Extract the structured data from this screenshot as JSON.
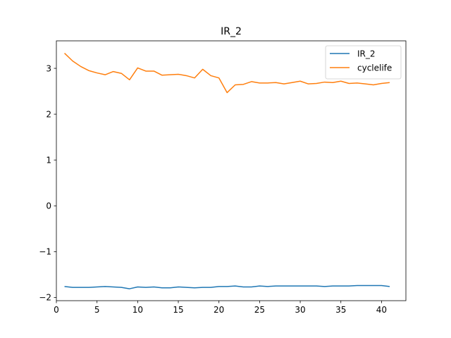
{
  "chart_data": {
    "type": "line",
    "title": "IR_2",
    "xlabel": "",
    "ylabel": "",
    "xlim": [
      -0.0,
      43.0
    ],
    "ylim": [
      -2.07,
      3.6
    ],
    "xticks": [
      0,
      5,
      10,
      15,
      20,
      25,
      30,
      35,
      40
    ],
    "yticks": [
      -2,
      -1,
      0,
      1,
      2,
      3
    ],
    "ytick_labels": [
      "−2",
      "−1",
      "0",
      "1",
      "2",
      "3"
    ],
    "grid": false,
    "legend_position": "top-right",
    "x": [
      1,
      2,
      3,
      4,
      5,
      6,
      7,
      8,
      9,
      10,
      11,
      12,
      13,
      14,
      15,
      16,
      17,
      18,
      19,
      20,
      21,
      22,
      23,
      24,
      25,
      26,
      27,
      28,
      29,
      30,
      31,
      32,
      33,
      34,
      35,
      36,
      37,
      38,
      39,
      40,
      41
    ],
    "series": [
      {
        "name": "IR_2",
        "color": "#1f77b4",
        "values": [
          -1.76,
          -1.78,
          -1.78,
          -1.78,
          -1.77,
          -1.76,
          -1.77,
          -1.78,
          -1.81,
          -1.77,
          -1.78,
          -1.77,
          -1.79,
          -1.79,
          -1.77,
          -1.78,
          -1.79,
          -1.78,
          -1.78,
          -1.76,
          -1.76,
          -1.75,
          -1.77,
          -1.77,
          -1.75,
          -1.76,
          -1.75,
          -1.75,
          -1.75,
          -1.75,
          -1.75,
          -1.75,
          -1.76,
          -1.75,
          -1.75,
          -1.75,
          -1.74,
          -1.74,
          -1.74,
          -1.74,
          -1.76
        ]
      },
      {
        "name": "cyclelife",
        "color": "#ff7f0e",
        "values": [
          3.33,
          3.16,
          3.04,
          2.95,
          2.9,
          2.86,
          2.93,
          2.89,
          2.75,
          3.01,
          2.94,
          2.94,
          2.85,
          2.86,
          2.87,
          2.84,
          2.79,
          2.98,
          2.84,
          2.79,
          2.47,
          2.64,
          2.65,
          2.71,
          2.68,
          2.68,
          2.69,
          2.66,
          2.69,
          2.72,
          2.66,
          2.67,
          2.7,
          2.69,
          2.72,
          2.67,
          2.68,
          2.66,
          2.64,
          2.67,
          2.69
        ]
      }
    ]
  }
}
